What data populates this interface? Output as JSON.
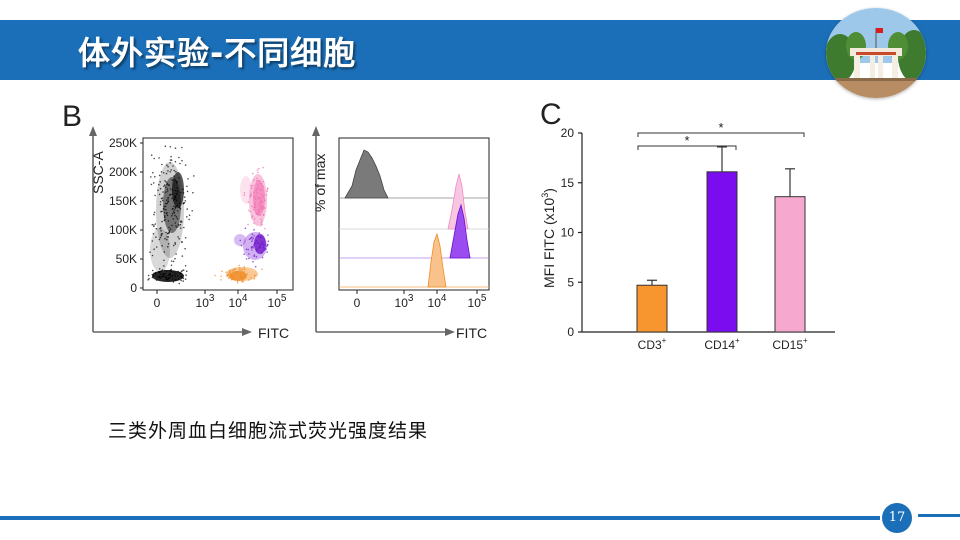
{
  "slide": {
    "title": "体外实验-不同细胞",
    "caption": "三类外周血白细胞流式荧光强度结果",
    "page_number": "17",
    "accent_color": "#1b6fb8"
  },
  "logo": {
    "icon": "campus-gate-photo"
  },
  "panel_b": {
    "label": "B",
    "scatter": {
      "y_axis_label": "SSC-A",
      "x_axis_label": "FITC",
      "y_ticks": [
        "0",
        "50K",
        "100K",
        "150K",
        "200K",
        "250K"
      ],
      "x_ticks": [
        {
          "base": "0",
          "exp": ""
        },
        {
          "base": "10",
          "exp": "3"
        },
        {
          "base": "10",
          "exp": "4"
        },
        {
          "base": "10",
          "exp": "5"
        }
      ],
      "populations": [
        {
          "color": "#111111",
          "description": "lymphocyte/granulocyte cluster"
        },
        {
          "color": "#f48fc0",
          "description": "pink population"
        },
        {
          "color": "#7b1fd8",
          "description": "purple population"
        },
        {
          "color": "#f59a3a",
          "description": "orange population"
        }
      ]
    },
    "histogram": {
      "y_axis_label": "% of max",
      "x_axis_label": "FITC",
      "x_ticks": [
        {
          "base": "0",
          "exp": ""
        },
        {
          "base": "10",
          "exp": "3"
        },
        {
          "base": "10",
          "exp": "4"
        },
        {
          "base": "10",
          "exp": "5"
        }
      ],
      "tracks": [
        {
          "color": "#777777"
        },
        {
          "color": "#f7b6d8"
        },
        {
          "color": "#8a2be2"
        },
        {
          "color": "#f7a95a"
        }
      ]
    }
  },
  "panel_c": {
    "label": "C",
    "chart_data": {
      "type": "bar",
      "categories": [
        {
          "base": "CD3",
          "sup": "+"
        },
        {
          "base": "CD14",
          "sup": "+"
        },
        {
          "base": "CD15",
          "sup": "+"
        }
      ],
      "values": [
        4.7,
        16.1,
        13.6
      ],
      "errors": [
        0.5,
        2.5,
        2.8
      ],
      "colors": [
        "#f7962e",
        "#7b0cf0",
        "#f7a8cf"
      ],
      "ylabel_base": "MFI FITC (x10",
      "ylabel_exp": "3",
      "ylabel_end": ")",
      "ylim": [
        0,
        20
      ],
      "yticks": [
        0,
        5,
        10,
        15,
        20
      ],
      "significance": [
        {
          "from": 0,
          "to": 1,
          "mark": "*"
        },
        {
          "from": 0,
          "to": 2,
          "mark": "*"
        }
      ]
    }
  }
}
